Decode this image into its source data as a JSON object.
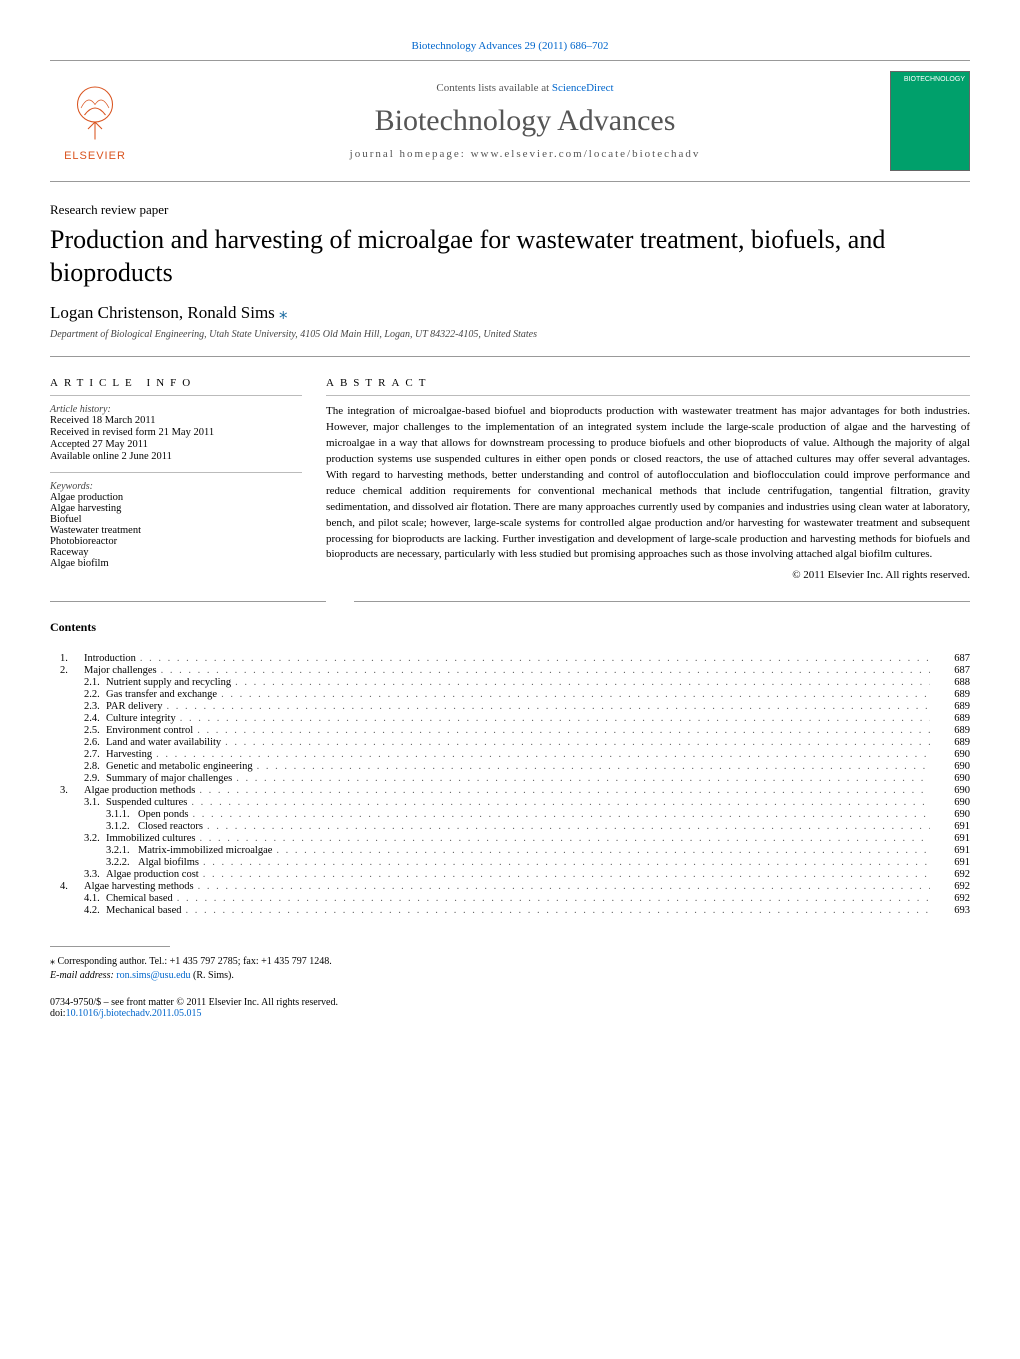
{
  "header": {
    "citation_link": "Biotechnology Advances 29 (2011) 686–702",
    "contents_prefix": "Contents lists available at ",
    "contents_link": "ScienceDirect",
    "journal_name": "Biotechnology Advances",
    "homepage_prefix": "journal homepage: ",
    "homepage_url": "www.elsevier.com/locate/biotechadv",
    "publisher_name": "ELSEVIER",
    "cover_badge": "BIOTECHNOLOGY"
  },
  "paper": {
    "type": "Research review paper",
    "title": "Production and harvesting of microalgae for wastewater treatment, biofuels, and bioproducts",
    "authors": "Logan Christenson, Ronald Sims",
    "affiliation": "Department of Biological Engineering, Utah State University, 4105 Old Main Hill, Logan, UT 84322-4105, United States"
  },
  "article_info": {
    "heading": "article info",
    "history_label": "Article history:",
    "history": [
      "Received 18 March 2011",
      "Received in revised form 21 May 2011",
      "Accepted 27 May 2011",
      "Available online 2 June 2011"
    ],
    "keywords_label": "Keywords:",
    "keywords": [
      "Algae production",
      "Algae harvesting",
      "Biofuel",
      "Wastewater treatment",
      "Photobioreactor",
      "Raceway",
      "Algae biofilm"
    ]
  },
  "abstract": {
    "heading": "abstract",
    "text": "The integration of microalgae-based biofuel and bioproducts production with wastewater treatment has major advantages for both industries. However, major challenges to the implementation of an integrated system include the large-scale production of algae and the harvesting of microalgae in a way that allows for downstream processing to produce biofuels and other bioproducts of value. Although the majority of algal production systems use suspended cultures in either open ponds or closed reactors, the use of attached cultures may offer several advantages. With regard to harvesting methods, better understanding and control of autoflocculation and bioflocculation could improve performance and reduce chemical addition requirements for conventional mechanical methods that include centrifugation, tangential filtration, gravity sedimentation, and dissolved air flotation. There are many approaches currently used by companies and industries using clean water at laboratory, bench, and pilot scale; however, large-scale systems for controlled algae production and/or harvesting for wastewater treatment and subsequent processing for bioproducts are lacking. Further investigation and development of large-scale production and harvesting methods for biofuels and bioproducts are necessary, particularly with less studied but promising approaches such as those involving attached algal biofilm cultures.",
    "copyright": "© 2011 Elsevier Inc. All rights reserved."
  },
  "contents": {
    "heading": "Contents",
    "items": [
      {
        "level": 1,
        "num": "1.",
        "title": "Introduction",
        "page": "687"
      },
      {
        "level": 1,
        "num": "2.",
        "title": "Major challenges",
        "page": "687"
      },
      {
        "level": 2,
        "num": "2.1.",
        "title": "Nutrient supply and recycling",
        "page": "688"
      },
      {
        "level": 2,
        "num": "2.2.",
        "title": "Gas transfer and exchange",
        "page": "689"
      },
      {
        "level": 2,
        "num": "2.3.",
        "title": "PAR delivery",
        "page": "689"
      },
      {
        "level": 2,
        "num": "2.4.",
        "title": "Culture integrity",
        "page": "689"
      },
      {
        "level": 2,
        "num": "2.5.",
        "title": "Environment control",
        "page": "689"
      },
      {
        "level": 2,
        "num": "2.6.",
        "title": "Land and water availability",
        "page": "689"
      },
      {
        "level": 2,
        "num": "2.7.",
        "title": "Harvesting",
        "page": "690"
      },
      {
        "level": 2,
        "num": "2.8.",
        "title": "Genetic and metabolic engineering",
        "page": "690"
      },
      {
        "level": 2,
        "num": "2.9.",
        "title": "Summary of major challenges",
        "page": "690"
      },
      {
        "level": 1,
        "num": "3.",
        "title": "Algae production methods",
        "page": "690"
      },
      {
        "level": 2,
        "num": "3.1.",
        "title": "Suspended cultures",
        "page": "690"
      },
      {
        "level": 3,
        "num": "3.1.1.",
        "title": "Open ponds",
        "page": "690"
      },
      {
        "level": 3,
        "num": "3.1.2.",
        "title": "Closed reactors",
        "page": "691"
      },
      {
        "level": 2,
        "num": "3.2.",
        "title": "Immobilized cultures",
        "page": "691"
      },
      {
        "level": 3,
        "num": "3.2.1.",
        "title": "Matrix-immobilized microalgae",
        "page": "691"
      },
      {
        "level": 3,
        "num": "3.2.2.",
        "title": "Algal biofilms",
        "page": "691"
      },
      {
        "level": 2,
        "num": "3.3.",
        "title": "Algae production cost",
        "page": "692"
      },
      {
        "level": 1,
        "num": "4.",
        "title": "Algae harvesting methods",
        "page": "692"
      },
      {
        "level": 2,
        "num": "4.1.",
        "title": "Chemical based",
        "page": "692"
      },
      {
        "level": 2,
        "num": "4.2.",
        "title": "Mechanical based",
        "page": "693"
      }
    ]
  },
  "footer": {
    "corresponding": "⁎ Corresponding author. Tel.: +1 435 797 2785; fax: +1 435 797 1248.",
    "email_label": "E-mail address: ",
    "email": "ron.sims@usu.edu",
    "email_suffix": " (R. Sims).",
    "issn_line": "0734-9750/$ – see front matter © 2011 Elsevier Inc. All rights reserved.",
    "doi_prefix": "doi:",
    "doi": "10.1016/j.biotechadv.2011.05.015"
  }
}
